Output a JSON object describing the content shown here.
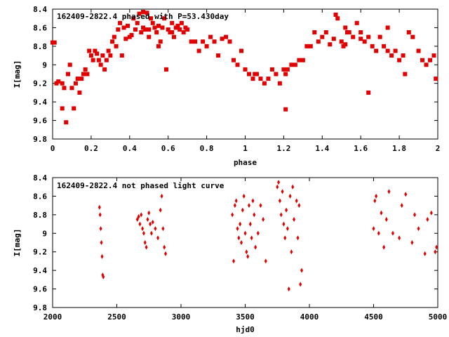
{
  "chart_data": [
    {
      "type": "scatter",
      "title": "162409-2822.4 phased with P=53.430day",
      "xlabel": "phase",
      "ylabel": "I[mag]",
      "xlim": [
        0,
        2
      ],
      "ylim": [
        8.4,
        9.8
      ],
      "y_inverted": true,
      "x_ticks": [
        "0",
        "0.2",
        "0.4",
        "0.6",
        "0.8",
        "1",
        "1.2",
        "1.4",
        "1.6",
        "1.8",
        "2"
      ],
      "y_ticks": [
        "8.4",
        "8.6",
        "8.8",
        "9",
        "9.2",
        "9.4",
        "9.6",
        "9.8"
      ],
      "color": "#e00000",
      "series": [
        {
          "x": [
            0.01,
            0.02,
            0.03,
            0.05,
            0.06,
            0.07,
            0.08,
            0.09,
            0.1,
            0.11,
            0.12,
            0.13,
            0.14,
            0.15,
            0.16,
            0.17,
            0.18,
            0.19,
            0.2,
            0.21,
            0.22,
            0.23,
            0.24,
            0.25,
            0.26,
            0.27,
            0.28,
            0.29,
            0.3,
            0.31,
            0.32,
            0.33,
            0.34,
            0.35,
            0.36,
            0.37,
            0.38,
            0.39,
            0.4,
            0.41,
            0.42,
            0.43,
            0.44,
            0.45,
            0.46,
            0.47,
            0.48,
            0.49,
            0.5,
            0.51,
            0.52,
            0.53,
            0.54,
            0.55,
            0.56,
            0.57,
            0.58,
            0.59,
            0.6,
            0.61,
            0.62,
            0.63,
            0.64,
            0.65,
            0.66,
            0.67,
            0.68,
            0.69,
            0.7,
            0.72,
            0.74,
            0.76,
            0.78,
            0.8,
            0.82,
            0.84,
            0.86,
            0.88,
            0.9,
            0.92,
            0.94,
            0.96,
            0.98,
            1.0,
            1.02,
            1.04,
            1.06,
            1.08,
            1.1,
            1.12,
            1.14,
            1.16,
            1.18,
            1.2,
            1.21,
            1.22,
            1.24,
            1.26,
            1.28,
            1.3,
            1.32,
            1.34,
            1.36,
            1.38,
            1.4,
            1.42,
            1.44,
            1.46,
            1.48,
            1.5,
            1.51,
            1.52,
            1.54,
            1.56,
            1.58,
            1.6,
            1.62,
            1.64,
            1.66,
            1.68,
            1.7,
            1.72,
            1.74,
            1.76,
            1.78,
            1.8,
            1.82,
            1.83,
            1.85,
            1.87,
            1.9,
            1.92,
            1.94,
            1.96,
            1.98,
            1.99,
            0.0,
            0.05,
            0.08,
            0.47,
            0.5,
            0.55,
            0.62,
            1.21,
            1.05,
            1.47,
            1.52,
            1.64,
            1.74,
            1.53,
            1.6
          ],
          "y": [
            8.76,
            9.2,
            9.18,
            9.47,
            9.25,
            9.62,
            9.1,
            9.0,
            9.25,
            9.47,
            9.2,
            9.15,
            9.3,
            9.15,
            9.1,
            9.05,
            9.1,
            8.85,
            8.9,
            8.95,
            8.85,
            8.88,
            8.95,
            9.0,
            8.9,
            9.05,
            8.95,
            8.85,
            8.9,
            8.75,
            8.7,
            8.8,
            8.62,
            8.55,
            8.9,
            8.6,
            8.72,
            8.58,
            8.7,
            8.68,
            8.5,
            8.62,
            8.55,
            8.45,
            8.65,
            8.6,
            8.62,
            8.44,
            8.7,
            8.5,
            8.55,
            8.6,
            8.65,
            8.8,
            8.75,
            8.6,
            8.5,
            9.05,
            8.62,
            8.65,
            8.55,
            8.7,
            8.6,
            8.58,
            8.62,
            8.55,
            8.65,
            8.6,
            8.62,
            8.75,
            8.75,
            8.85,
            8.75,
            8.8,
            8.7,
            8.75,
            8.9,
            8.72,
            8.7,
            8.75,
            8.95,
            9.0,
            8.85,
            9.05,
            9.1,
            9.15,
            9.1,
            9.15,
            9.2,
            9.15,
            9.05,
            9.1,
            9.2,
            9.05,
            9.1,
            9.05,
            9.0,
            9.0,
            8.95,
            8.95,
            8.8,
            8.8,
            8.65,
            8.75,
            8.7,
            8.65,
            8.78,
            8.72,
            8.5,
            8.75,
            8.8,
            8.78,
            8.65,
            8.7,
            8.55,
            8.65,
            8.75,
            8.7,
            8.8,
            8.85,
            8.7,
            8.8,
            8.85,
            8.9,
            8.85,
            8.95,
            8.9,
            9.1,
            8.65,
            8.7,
            8.85,
            8.95,
            9.0,
            8.95,
            8.9,
            9.15,
            8.76,
            9.2,
            9.1,
            8.43,
            8.62,
            8.58,
            8.65,
            9.48,
            9.1,
            8.46,
            8.6,
            9.3,
            8.6,
            8.65,
            8.72
          ]
        }
      ]
    },
    {
      "type": "scatter",
      "title": "162409-2822.4 not phased light curve",
      "xlabel": "hjd0",
      "ylabel": "I[mag]",
      "xlim": [
        2000,
        5000
      ],
      "ylim": [
        8.4,
        9.8
      ],
      "y_inverted": true,
      "x_ticks": [
        "2000",
        "2500",
        "3000",
        "3500",
        "4000",
        "4500",
        "5000"
      ],
      "y_ticks": [
        "8.4",
        "8.6",
        "8.8",
        "9",
        "9.2",
        "9.4",
        "9.6",
        "9.8"
      ],
      "color": "#e00000",
      "series": [
        {
          "x": [
            2365,
            2370,
            2375,
            2380,
            2385,
            2390,
            2395,
            2660,
            2670,
            2680,
            2690,
            2700,
            2710,
            2720,
            2730,
            2740,
            2750,
            2760,
            2770,
            2780,
            2800,
            2820,
            2840,
            2850,
            2860,
            2870,
            2880,
            3400,
            3410,
            3420,
            3430,
            3440,
            3450,
            3460,
            3470,
            3480,
            3490,
            3500,
            3510,
            3520,
            3530,
            3540,
            3550,
            3560,
            3570,
            3580,
            3600,
            3620,
            3640,
            3660,
            3750,
            3760,
            3770,
            3780,
            3790,
            3800,
            3810,
            3820,
            3830,
            3840,
            3850,
            3860,
            3870,
            3880,
            3900,
            3910,
            3920,
            3930,
            3940,
            4500,
            4510,
            4520,
            4540,
            4560,
            4580,
            4600,
            4620,
            4650,
            4700,
            4720,
            4750,
            4800,
            4820,
            4850,
            4900,
            4920,
            4950,
            4980,
            4990
          ],
          "y": [
            8.72,
            8.8,
            8.95,
            9.1,
            9.25,
            9.45,
            9.47,
            8.85,
            8.82,
            8.9,
            8.8,
            8.95,
            9.0,
            9.1,
            9.15,
            8.85,
            8.78,
            8.9,
            9.0,
            8.88,
            8.95,
            9.05,
            8.75,
            8.6,
            8.95,
            9.15,
            9.22,
            8.8,
            9.3,
            8.7,
            8.65,
            8.95,
            9.05,
            8.9,
            9.1,
            8.75,
            8.6,
            9.0,
            9.2,
            9.25,
            8.7,
            8.9,
            9.05,
            8.65,
            8.8,
            9.15,
            9.0,
            8.7,
            8.85,
            9.3,
            8.5,
            8.45,
            8.65,
            8.8,
            8.55,
            8.9,
            9.05,
            8.75,
            8.95,
            9.6,
            8.6,
            9.2,
            8.5,
            8.85,
            8.65,
            9.05,
            8.7,
            9.55,
            9.4,
            8.95,
            8.65,
            8.6,
            9.0,
            8.78,
            9.15,
            8.85,
            8.55,
            9.0,
            9.05,
            8.7,
            8.58,
            9.1,
            8.8,
            8.95,
            9.22,
            8.85,
            8.78,
            9.2,
            9.15
          ]
        }
      ]
    }
  ]
}
